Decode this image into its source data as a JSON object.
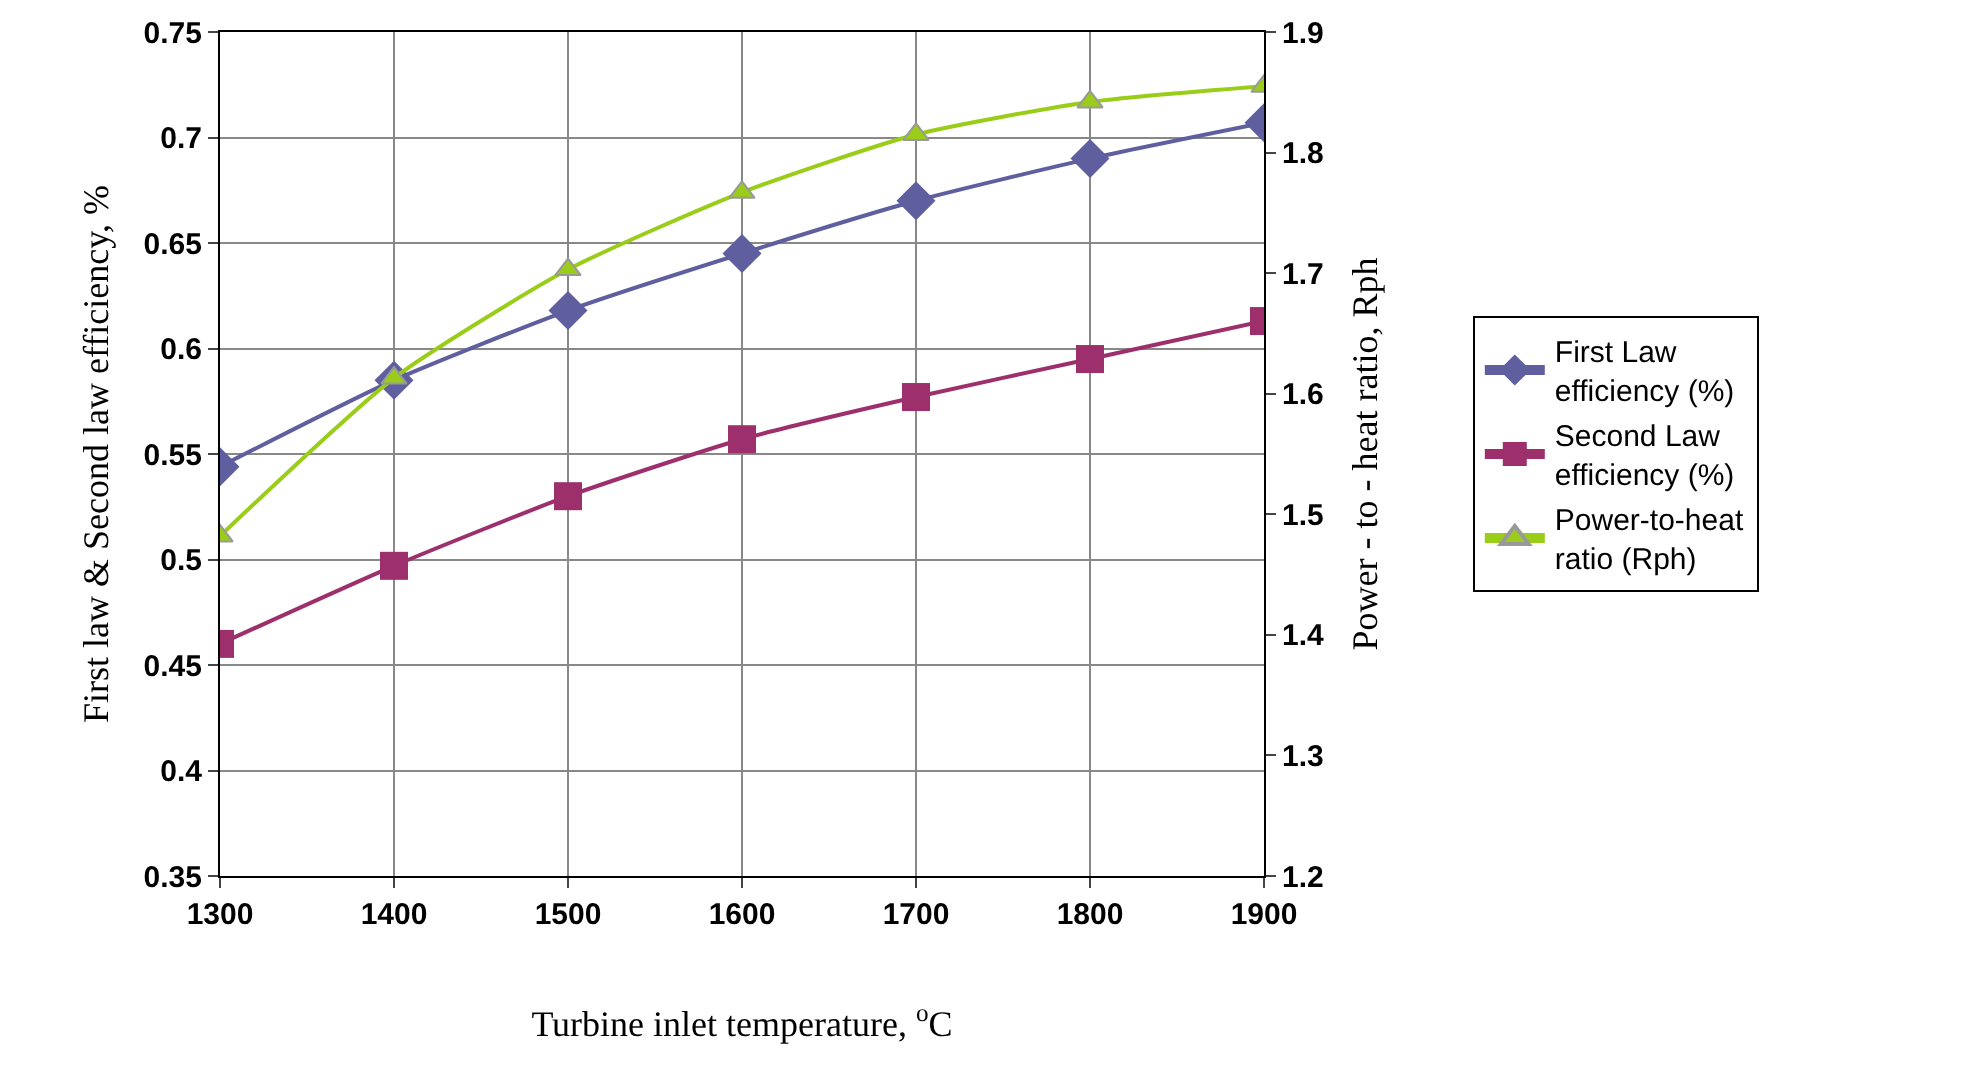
{
  "chart_data": {
    "type": "line",
    "xlabel": "Turbine inlet temperature, $^{o}$C",
    "ylabel": "First law & Second law efficiency, %",
    "y2label": "Power - to - heat ratio, Rph",
    "x": [
      1300,
      1400,
      1500,
      1600,
      1700,
      1800,
      1900
    ],
    "series": [
      {
        "name": "First Law efficiency (%)",
        "color": "#5f5f9f",
        "marker": "diamond",
        "values": [
          0.544,
          0.585,
          0.618,
          0.645,
          0.67,
          0.69,
          0.707
        ]
      },
      {
        "name": "Second Law efficiency (%)",
        "color": "#9c2f6c",
        "marker": "square",
        "values": [
          0.46,
          0.497,
          0.53,
          0.557,
          0.577,
          0.595,
          0.613
        ]
      },
      {
        "name": "Power-to-heat ratio (Rph)",
        "color": "#9acd1a",
        "marker": "triangle",
        "axis": "y2",
        "values": [
          1.482,
          1.613,
          1.703,
          1.767,
          1.815,
          1.842,
          1.855
        ]
      }
    ],
    "xlim": [
      1300,
      1900
    ],
    "xticks": [
      1300,
      1400,
      1500,
      1600,
      1700,
      1800,
      1900
    ],
    "ylim": [
      0.35,
      0.75
    ],
    "yticks": [
      0.35,
      0.4,
      0.45,
      0.5,
      0.55,
      0.6,
      0.65,
      0.7,
      0.75
    ],
    "y2lim": [
      1.2,
      1.9
    ],
    "y2ticks": [
      1.2,
      1.3,
      1.4,
      1.5,
      1.6,
      1.7,
      1.8,
      1.9
    ],
    "grid": true,
    "legend": "right"
  }
}
